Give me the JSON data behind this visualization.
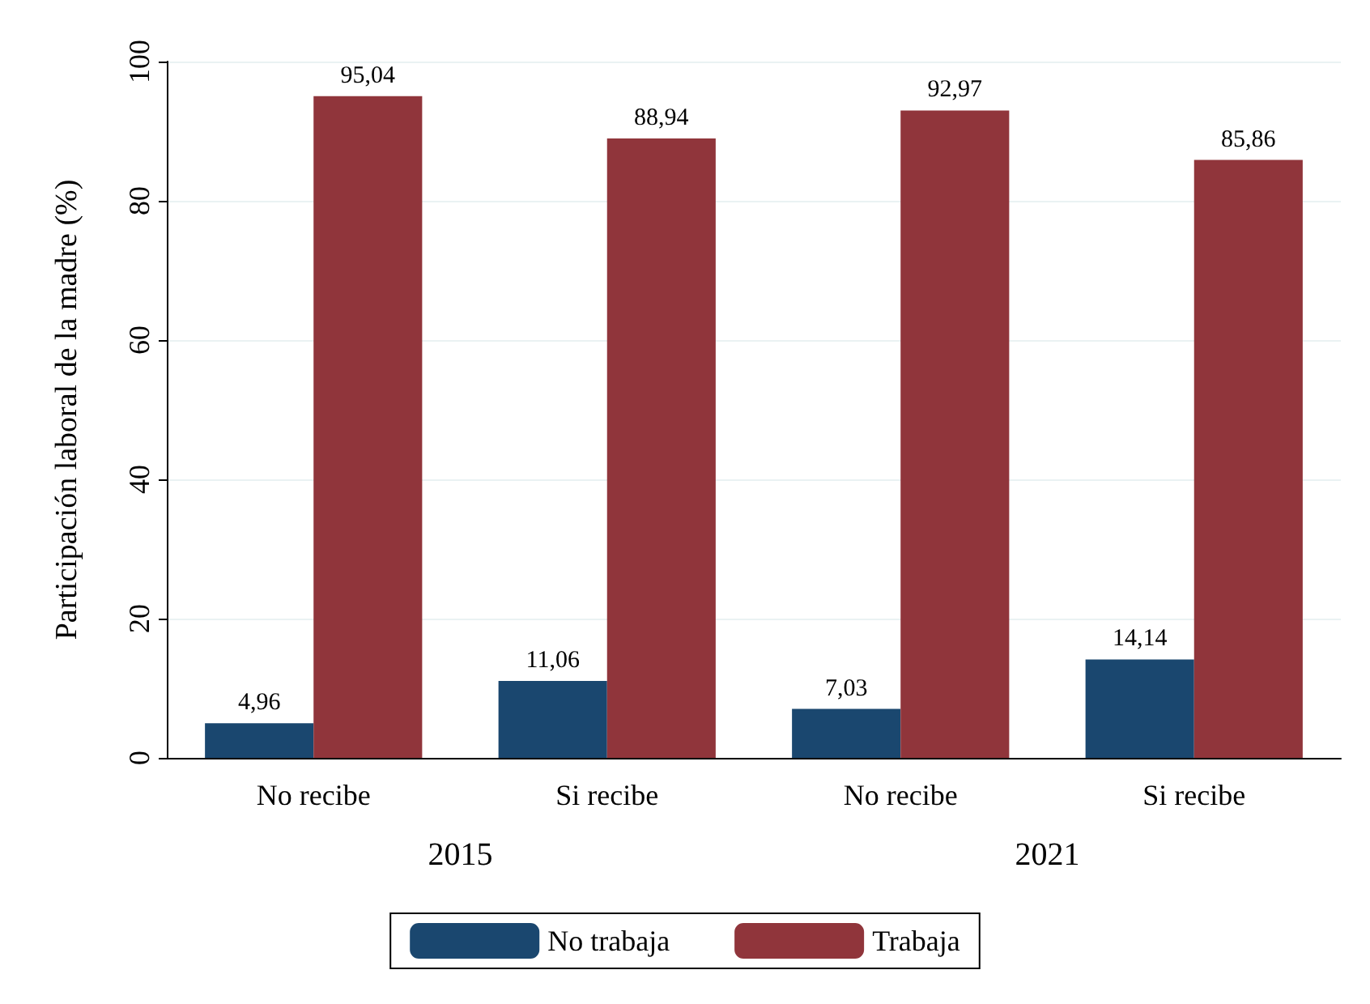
{
  "chart_data": {
    "type": "bar",
    "ylabel": "Participación laboral de la madre (%)",
    "categories": [
      "No recibe",
      "Si recibe",
      "No recibe",
      "Si recibe"
    ],
    "annotations": [
      "2015",
      "2021"
    ],
    "series": [
      {
        "name": "No trabaja",
        "color": "#1a476f",
        "values": [
          4.96,
          11.06,
          7.03,
          14.14
        ],
        "value_labels": [
          "4,96",
          "11,06",
          "7,03",
          "14,14"
        ]
      },
      {
        "name": "Trabaja",
        "color": "#90353b",
        "values": [
          95.04,
          88.94,
          92.97,
          85.86
        ],
        "value_labels": [
          "95,04",
          "88,94",
          "92,97",
          "85,86"
        ]
      }
    ],
    "ylim": [
      0,
      100
    ],
    "yticks": [
      0,
      20,
      40,
      60,
      80,
      100
    ],
    "grid": "y",
    "legend": "bottom"
  }
}
